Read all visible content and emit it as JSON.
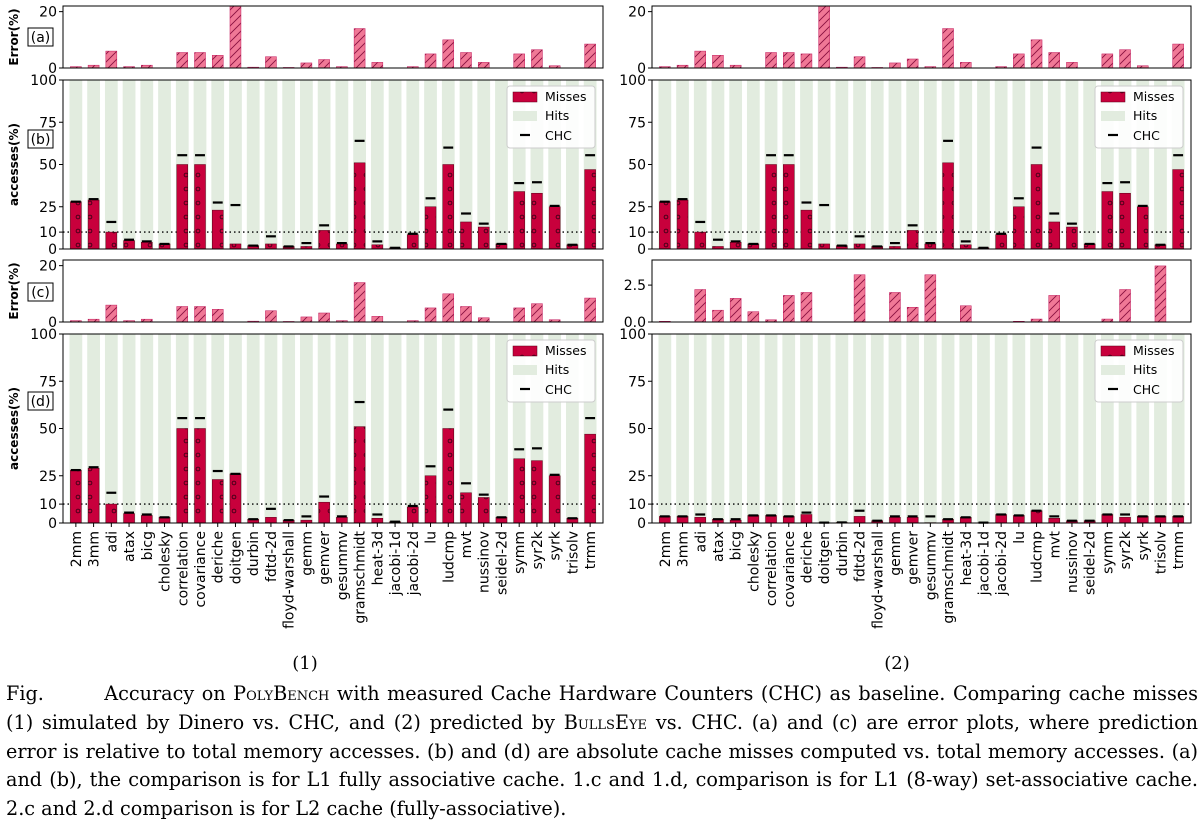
{
  "labels": [
    "2mm",
    "3mm",
    "adi",
    "atax",
    "bicg",
    "cholesky",
    "correlation",
    "covariance",
    "deriche",
    "doitgen",
    "durbin",
    "fdtd-2d",
    "floyd-warshall",
    "gemm",
    "gemver",
    "gesummv",
    "gramschmidt",
    "heat-3d",
    "jacobi-1d",
    "jacobi-2d",
    "lu",
    "ludcmp",
    "mvt",
    "nussinov",
    "seidel-2d",
    "symm",
    "syr2k",
    "syrk",
    "trisolv",
    "trmm"
  ],
  "panel_tags": [
    "(a)",
    "(b)",
    "(c)",
    "(d)"
  ],
  "legend": {
    "misses": "Misses",
    "hits": "Hits",
    "chc": "CHC"
  },
  "column_labels": [
    "(1)",
    "(2)"
  ],
  "colors": {
    "miss": "#c8003c",
    "hit": "#e2ecdf",
    "error": "#f07896",
    "error_stroke": "#c2185b",
    "ref": "#000000"
  },
  "reference_line": 10,
  "chart_data": [
    {
      "type": "bar",
      "column": 1,
      "tag": "(a)",
      "ylabel": "Error(%)",
      "ylim": [
        0,
        22
      ],
      "yticks": [
        0,
        20
      ],
      "categories_ref": "labels",
      "values": [
        0.5,
        1,
        6,
        0.5,
        1,
        0,
        5.5,
        5.5,
        4.5,
        23,
        0.3,
        4,
        0.2,
        1.8,
        3,
        0.5,
        14,
        2,
        0,
        0.5,
        5,
        10,
        5.5,
        2,
        0,
        5,
        6.5,
        0.8,
        0,
        8.5
      ]
    },
    {
      "type": "bar",
      "column": 1,
      "tag": "(b)",
      "ylabel": "accesses(%)",
      "ylim": [
        0,
        100
      ],
      "yticks": [
        0,
        10,
        25,
        50,
        75,
        100
      ],
      "series": [
        {
          "name": "Misses",
          "values": [
            28,
            29,
            10,
            5,
            4,
            3,
            50,
            50,
            23,
            3,
            2,
            3,
            1.5,
            1.5,
            11,
            3,
            51,
            2.5,
            0.7,
            8.5,
            25,
            50,
            16,
            13,
            3,
            34,
            33,
            25,
            2.5,
            47
          ]
        },
        {
          "name": "CHC",
          "values": [
            28,
            29.5,
            16,
            5.5,
            4.5,
            3,
            55.5,
            55.5,
            27.5,
            26,
            2,
            7.5,
            1.5,
            3.5,
            14,
            3.5,
            64,
            4.5,
            0.7,
            9,
            30,
            60,
            21,
            15,
            3,
            39,
            39.5,
            25.5,
            2.5,
            55.5
          ]
        }
      ]
    },
    {
      "type": "bar",
      "column": 1,
      "tag": "(c)",
      "ylabel": "Error(%)",
      "ylim": [
        0,
        22
      ],
      "yticks": [
        0,
        20
      ],
      "categories_ref": "labels",
      "values": [
        0.5,
        1,
        6,
        0.5,
        1,
        0,
        5.5,
        5.5,
        4.5,
        0,
        0.3,
        4,
        0.2,
        1.8,
        3.2,
        0.5,
        14,
        2,
        0,
        0.5,
        5,
        10,
        5.5,
        1.5,
        0,
        5,
        6.5,
        0.8,
        0,
        8.5
      ]
    },
    {
      "type": "bar",
      "column": 1,
      "tag": "(d)",
      "ylabel": "accesses(%)",
      "ylim": [
        0,
        100
      ],
      "yticks": [
        0,
        10,
        25,
        50,
        75,
        100
      ],
      "series": [
        {
          "name": "Misses",
          "values": [
            28,
            29,
            10,
            5,
            4,
            3,
            50,
            50,
            23,
            26,
            2,
            3,
            1.5,
            1.5,
            11,
            3,
            51,
            2.5,
            0.7,
            8.5,
            25,
            50,
            16,
            13.5,
            3,
            34,
            33,
            25,
            2.5,
            47
          ]
        },
        {
          "name": "CHC",
          "values": [
            28,
            29.5,
            16,
            5.5,
            4.5,
            3,
            55.5,
            55.5,
            27.5,
            26,
            2,
            7.5,
            1.5,
            3.5,
            14,
            3.5,
            64,
            4.5,
            0.7,
            9,
            30,
            60,
            21,
            15,
            3,
            39,
            39.5,
            25.5,
            2.5,
            55.5
          ]
        }
      ]
    },
    {
      "type": "bar",
      "column": 2,
      "tag": "",
      "ylabel": "",
      "ylim": [
        0,
        22
      ],
      "yticks": [
        0,
        20
      ],
      "categories_ref": "labels",
      "values": [
        0.5,
        1,
        6,
        4.5,
        1,
        0,
        5.5,
        5.5,
        5,
        23,
        0.3,
        4,
        0.2,
        1.8,
        3.2,
        0.5,
        14,
        2,
        0,
        0.5,
        5,
        10,
        5.5,
        2,
        0,
        5,
        6.5,
        0.8,
        0,
        8.5
      ]
    },
    {
      "type": "bar",
      "column": 2,
      "tag": "",
      "ylabel": "",
      "ylim": [
        0,
        100
      ],
      "yticks": [
        0,
        10,
        25,
        50,
        75,
        100
      ],
      "series": [
        {
          "name": "Misses",
          "values": [
            28,
            29,
            10,
            1.5,
            4,
            3,
            50,
            50,
            23,
            3,
            2,
            3,
            1.5,
            1.5,
            11,
            3,
            51,
            2.5,
            0.7,
            8.5,
            25,
            50,
            16,
            13,
            3,
            34,
            33,
            25,
            2.5,
            47
          ]
        },
        {
          "name": "CHC",
          "values": [
            28,
            29.5,
            16,
            5.5,
            4.5,
            3,
            55.5,
            55.5,
            27.5,
            26,
            2,
            7.5,
            1.5,
            3.5,
            14,
            3.5,
            64,
            4.5,
            0.7,
            9,
            30,
            60,
            21,
            15,
            3,
            39,
            39.5,
            25.5,
            2.5,
            55.5
          ]
        }
      ]
    },
    {
      "type": "bar",
      "column": 2,
      "tag": "",
      "ylabel": "",
      "ylim": [
        0,
        4.2
      ],
      "yticks": [
        0.0,
        2.5
      ],
      "categories_ref": "labels",
      "values": [
        0.05,
        0,
        2.2,
        0.8,
        1.6,
        0.7,
        0.15,
        1.8,
        2,
        0,
        0,
        3.2,
        0,
        2,
        1,
        3.2,
        0,
        1.1,
        0,
        0,
        0.05,
        0.2,
        1.8,
        0,
        0,
        0.2,
        2.2,
        0,
        3.8,
        0
      ]
    },
    {
      "type": "bar",
      "column": 2,
      "tag": "",
      "ylabel": "",
      "ylim": [
        0,
        100
      ],
      "yticks": [
        0,
        10,
        25,
        50,
        75,
        100
      ],
      "series": [
        {
          "name": "Misses",
          "values": [
            3.5,
            3.5,
            3,
            2,
            1.5,
            4,
            4,
            3.5,
            4.5,
            0.2,
            0.3,
            3.5,
            1.2,
            3,
            3,
            0.2,
            2,
            3,
            0.2,
            4.5,
            4,
            6.5,
            2.5,
            1.2,
            1.2,
            4.5,
            3,
            3.5,
            3.5,
            3.5
          ]
        },
        {
          "name": "CHC",
          "values": [
            3.5,
            3.5,
            4.5,
            2,
            2,
            4,
            4,
            3.5,
            5.5,
            0.2,
            0.3,
            6.5,
            1.2,
            3.5,
            3.5,
            3.5,
            2,
            3,
            0.2,
            4.5,
            4,
            6.5,
            3.5,
            1.2,
            1.2,
            4.5,
            4.5,
            3.5,
            3.5,
            3.5
          ]
        }
      ]
    }
  ],
  "caption": {
    "fig_label": "Fig.",
    "p1": "Accuracy on ",
    "sc1": "PolyBench",
    "p2": " with measured Cache Hardware Counters (CHC) as baseline. Comparing cache misses (1) simulated by Dinero vs. CHC, and (2) predicted by ",
    "sc2": "BullsEye",
    "p3": " vs. CHC. (a) and (c) are error plots, where prediction error is relative to total memory accesses. (b) and (d) are absolute cache misses computed vs. total memory accesses. (a) and (b), the comparison is for L1 fully associative cache. 1.c and 1.d, comparison is for L1 (8-way) set-associative cache. 2.c and 2.d comparison is for L2 cache (fully-associative)."
  }
}
